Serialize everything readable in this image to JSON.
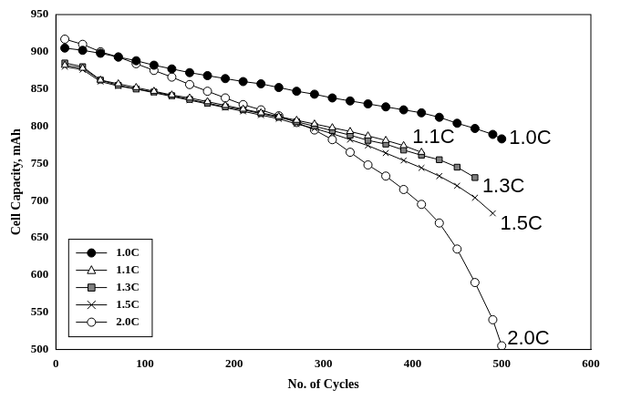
{
  "chart_data": {
    "type": "line",
    "x_label": "No. of Cycles",
    "y_label": "Cell Capacity, mAh",
    "x": [
      10,
      30,
      50,
      70,
      90,
      110,
      130,
      150,
      170,
      190,
      210,
      230,
      250,
      270,
      290,
      310,
      330,
      350,
      370,
      390,
      410,
      430,
      450,
      470,
      490,
      500
    ],
    "series": [
      {
        "name": "1.0C",
        "color": "#000000",
        "marker": "circle",
        "values": [
          905,
          902,
          898,
          893,
          888,
          882,
          877,
          872,
          868,
          864,
          860,
          857,
          852,
          847,
          843,
          838,
          834,
          830,
          826,
          822,
          818,
          812,
          804,
          797,
          789,
          783
        ]
      },
      {
        "name": "1.1C",
        "color": "#ffffff",
        "marker": "triangle",
        "values": [
          882,
          878,
          862,
          857,
          852,
          847,
          842,
          838,
          833,
          828,
          823,
          818,
          813,
          808,
          803,
          798,
          793,
          787,
          781,
          774,
          765,
          null,
          null,
          null,
          null,
          null
        ]
      },
      {
        "name": "1.3C",
        "color": "#808080",
        "marker": "square",
        "values": [
          885,
          880,
          862,
          855,
          850,
          846,
          841,
          836,
          831,
          826,
          822,
          817,
          812,
          806,
          800,
          794,
          788,
          781,
          776,
          768,
          761,
          755,
          745,
          731,
          null,
          null
        ]
      },
      {
        "name": "1.5C",
        "color": "#000000",
        "marker": "x",
        "values": [
          880,
          876,
          860,
          854,
          850,
          845,
          840,
          835,
          830,
          825,
          820,
          815,
          810,
          803,
          797,
          790,
          782,
          774,
          764,
          754,
          744,
          733,
          720,
          704,
          683,
          null
        ]
      },
      {
        "name": "2.0C",
        "color": "#ffffff",
        "marker": "circle",
        "values": [
          917,
          910,
          900,
          893,
          884,
          875,
          866,
          856,
          847,
          838,
          829,
          822,
          814,
          805,
          795,
          782,
          765,
          748,
          733,
          715,
          695,
          670,
          635,
          590,
          540,
          505
        ]
      }
    ],
    "xlim": [
      0,
      600
    ],
    "xticks": [
      0,
      100,
      200,
      300,
      400,
      500,
      600
    ],
    "ylim": [
      500,
      950
    ],
    "yticks": [
      500,
      550,
      600,
      650,
      700,
      750,
      800,
      850,
      900,
      950
    ],
    "grid": false,
    "legend": "lower left"
  }
}
